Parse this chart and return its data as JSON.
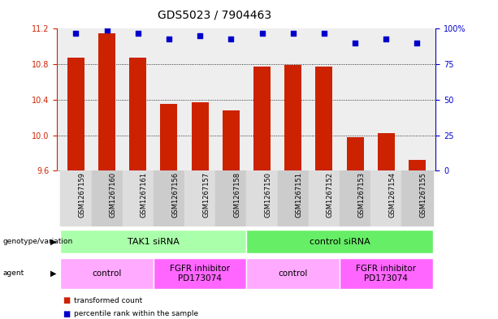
{
  "title": "GDS5023 / 7904463",
  "samples": [
    "GSM1267159",
    "GSM1267160",
    "GSM1267161",
    "GSM1267156",
    "GSM1267157",
    "GSM1267158",
    "GSM1267150",
    "GSM1267151",
    "GSM1267152",
    "GSM1267153",
    "GSM1267154",
    "GSM1267155"
  ],
  "bar_values": [
    10.87,
    11.15,
    10.87,
    10.35,
    10.37,
    10.28,
    10.77,
    10.79,
    10.77,
    9.98,
    10.02,
    9.72
  ],
  "dot_values": [
    97,
    99,
    97,
    93,
    95,
    93,
    97,
    97,
    97,
    90,
    93,
    90
  ],
  "ylim": [
    9.6,
    11.2
  ],
  "y2lim": [
    0,
    100
  ],
  "yticks": [
    9.6,
    10.0,
    10.4,
    10.8,
    11.2
  ],
  "y2ticks": [
    0,
    25,
    50,
    75,
    100
  ],
  "y2tick_labels": [
    "0",
    "25",
    "50",
    "75",
    "100%"
  ],
  "bar_color": "#cc2200",
  "dot_color": "#0000cc",
  "bar_width": 0.55,
  "title_fontsize": 10,
  "tick_fontsize": 7,
  "sample_fontsize": 6,
  "genotype_row": {
    "label": "genotype/variation",
    "groups": [
      {
        "text": "TAK1 siRNA",
        "start": 0,
        "end": 5,
        "color": "#aaffaa"
      },
      {
        "text": "control siRNA",
        "start": 6,
        "end": 11,
        "color": "#66ee66"
      }
    ]
  },
  "agent_row": {
    "label": "agent",
    "groups": [
      {
        "text": "control",
        "start": 0,
        "end": 2,
        "color": "#ffaaff"
      },
      {
        "text": "FGFR inhibitor\nPD173074",
        "start": 3,
        "end": 5,
        "color": "#ff66ff"
      },
      {
        "text": "control",
        "start": 6,
        "end": 8,
        "color": "#ffaaff"
      },
      {
        "text": "FGFR inhibitor\nPD173074",
        "start": 9,
        "end": 11,
        "color": "#ff66ff"
      }
    ]
  },
  "legend_items": [
    {
      "color": "#cc2200",
      "label": "transformed count"
    },
    {
      "color": "#0000cc",
      "label": "percentile rank within the sample"
    }
  ]
}
